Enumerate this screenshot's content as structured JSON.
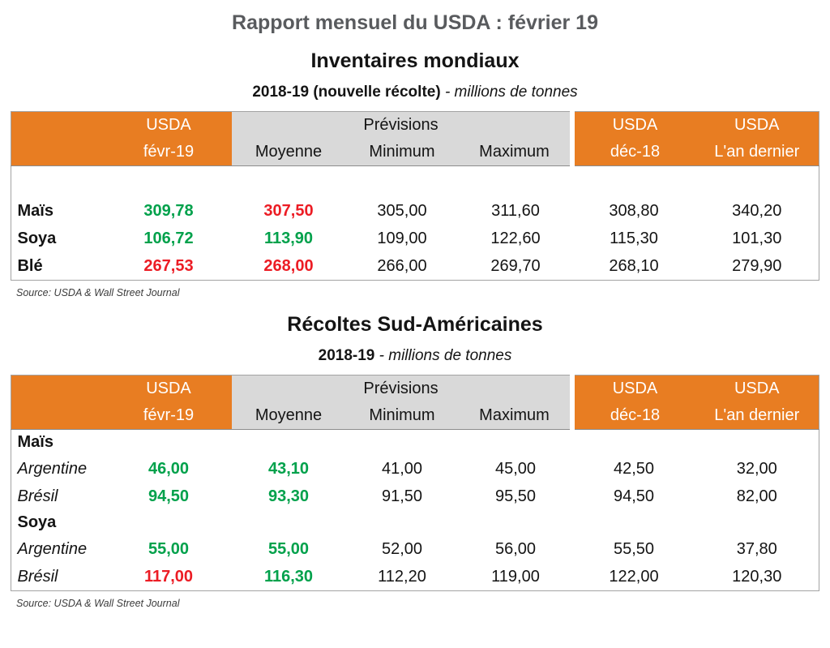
{
  "title": "Rapport mensuel du USDA : février 19",
  "colors": {
    "header_orange": "#E87D22",
    "header_gray": "#D9D9D9",
    "value_green": "#00A14B",
    "value_red": "#EC1C24",
    "title_gray": "#595B5E"
  },
  "sections": [
    {
      "heading": "Inventaires mondiaux",
      "subtitle": {
        "bold": "2018-19 (nouvelle récolte)",
        "italic": " - millions de tonnes"
      },
      "source": "Source: USDA & Wall Street Journal",
      "table": {
        "header": {
          "usda": "USDA",
          "previsions": "Prévisions",
          "col1_sub": "févr-19",
          "subcols": [
            "Moyenne",
            "Minimum",
            "Maximum"
          ],
          "col5_sub": "déc-18",
          "col6_sub": "L'an dernier"
        },
        "rows": [
          {
            "type": "spacer",
            "label": ""
          },
          {
            "type": "data",
            "label": "Maïs",
            "labelStyle": "bold",
            "cells": [
              {
                "v": "309,78",
                "c": "green"
              },
              {
                "v": "307,50",
                "c": "red"
              },
              {
                "v": "305,00",
                "c": "plain"
              },
              {
                "v": "311,60",
                "c": "plain"
              },
              {
                "v": "308,80",
                "c": "plain"
              },
              {
                "v": "340,20",
                "c": "plain"
              }
            ]
          },
          {
            "type": "data",
            "label": "Soya",
            "labelStyle": "bold",
            "cells": [
              {
                "v": "106,72",
                "c": "green"
              },
              {
                "v": "113,90",
                "c": "green"
              },
              {
                "v": "109,00",
                "c": "plain"
              },
              {
                "v": "122,60",
                "c": "plain"
              },
              {
                "v": "115,30",
                "c": "plain"
              },
              {
                "v": "101,30",
                "c": "plain"
              }
            ]
          },
          {
            "type": "data",
            "label": "Blé",
            "labelStyle": "bold",
            "cells": [
              {
                "v": "267,53",
                "c": "red"
              },
              {
                "v": "268,00",
                "c": "red"
              },
              {
                "v": "266,00",
                "c": "plain"
              },
              {
                "v": "269,70",
                "c": "plain"
              },
              {
                "v": "268,10",
                "c": "plain"
              },
              {
                "v": "279,90",
                "c": "plain"
              }
            ]
          }
        ]
      }
    },
    {
      "heading": "Récoltes Sud-Américaines",
      "subtitle": {
        "bold": "2018-19",
        "italic": " - millions de tonnes"
      },
      "source": "Source: USDA & Wall Street Journal",
      "table": {
        "header": {
          "usda": "USDA",
          "previsions": "Prévisions",
          "col1_sub": "févr-19",
          "subcols": [
            "Moyenne",
            "Minimum",
            "Maximum"
          ],
          "col5_sub": "déc-18",
          "col6_sub": "L'an dernier"
        },
        "rows": [
          {
            "type": "group",
            "label": "Maïs",
            "labelStyle": "bold"
          },
          {
            "type": "data",
            "label": "Argentine",
            "labelStyle": "italic",
            "cells": [
              {
                "v": "46,00",
                "c": "green"
              },
              {
                "v": "43,10",
                "c": "green"
              },
              {
                "v": "41,00",
                "c": "plain"
              },
              {
                "v": "45,00",
                "c": "plain"
              },
              {
                "v": "42,50",
                "c": "plain"
              },
              {
                "v": "32,00",
                "c": "plain"
              }
            ]
          },
          {
            "type": "data",
            "label": "Brésil",
            "labelStyle": "italic",
            "cells": [
              {
                "v": "94,50",
                "c": "green"
              },
              {
                "v": "93,30",
                "c": "green"
              },
              {
                "v": "91,50",
                "c": "plain"
              },
              {
                "v": "95,50",
                "c": "plain"
              },
              {
                "v": "94,50",
                "c": "plain"
              },
              {
                "v": "82,00",
                "c": "plain"
              }
            ]
          },
          {
            "type": "group",
            "label": "Soya",
            "labelStyle": "bold"
          },
          {
            "type": "data",
            "label": "Argentine",
            "labelStyle": "italic",
            "cells": [
              {
                "v": "55,00",
                "c": "green"
              },
              {
                "v": "55,00",
                "c": "green"
              },
              {
                "v": "52,00",
                "c": "plain"
              },
              {
                "v": "56,00",
                "c": "plain"
              },
              {
                "v": "55,50",
                "c": "plain"
              },
              {
                "v": "37,80",
                "c": "plain"
              }
            ]
          },
          {
            "type": "data",
            "label": "Brésil",
            "labelStyle": "italic",
            "cells": [
              {
                "v": "117,00",
                "c": "red"
              },
              {
                "v": "116,30",
                "c": "green"
              },
              {
                "v": "112,20",
                "c": "plain"
              },
              {
                "v": "119,00",
                "c": "plain"
              },
              {
                "v": "122,00",
                "c": "plain"
              },
              {
                "v": "120,30",
                "c": "plain"
              }
            ]
          }
        ]
      }
    }
  ]
}
